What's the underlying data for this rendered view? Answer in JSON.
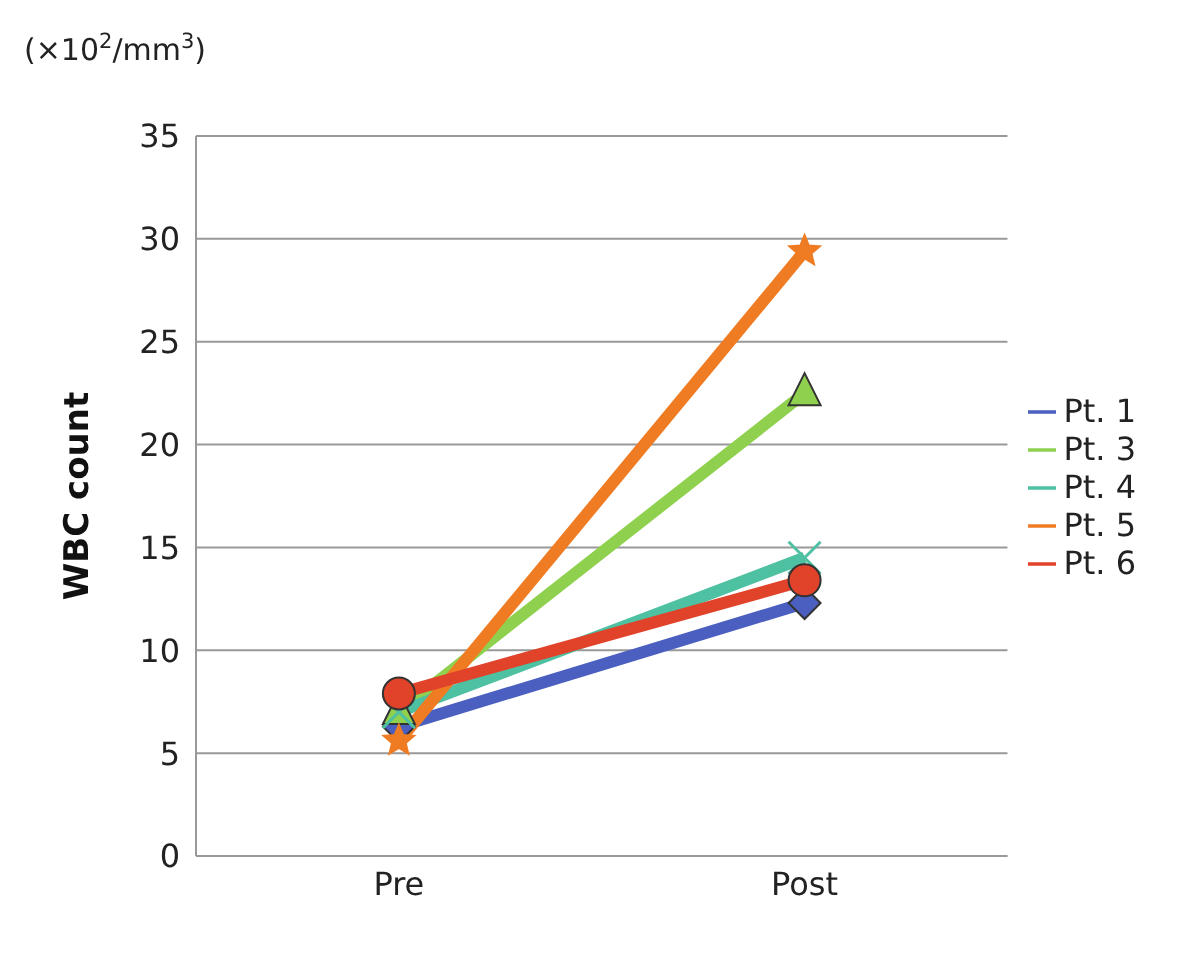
{
  "chart_data": {
    "type": "line",
    "ylabel": "WBC count",
    "annotations": [
      "(×10$^{2}$/mm$^{3}$)"
    ],
    "categories": [
      "Pre",
      "Post"
    ],
    "ylim": [
      0,
      35
    ],
    "yticks": [
      0,
      5,
      10,
      15,
      20,
      25,
      30,
      35
    ],
    "grid": "y",
    "legend": "right",
    "series": [
      {
        "name": "Pt. 1",
        "color": "#4a5fbf",
        "marker": "diamond",
        "values": [
          6.3,
          12.3
        ]
      },
      {
        "name": "Pt. 3",
        "color": "#8fd14f",
        "marker": "triangle",
        "values": [
          7.0,
          22.5
        ]
      },
      {
        "name": "Pt. 4",
        "color": "#4fc1a3",
        "marker": "cross",
        "values": [
          7.0,
          14.5
        ]
      },
      {
        "name": "Pt. 5",
        "color": "#ef7b22",
        "marker": "star",
        "values": [
          5.6,
          29.4
        ]
      },
      {
        "name": "Pt. 6",
        "color": "#e0422a",
        "marker": "circle",
        "values": [
          7.9,
          13.4
        ]
      }
    ]
  }
}
